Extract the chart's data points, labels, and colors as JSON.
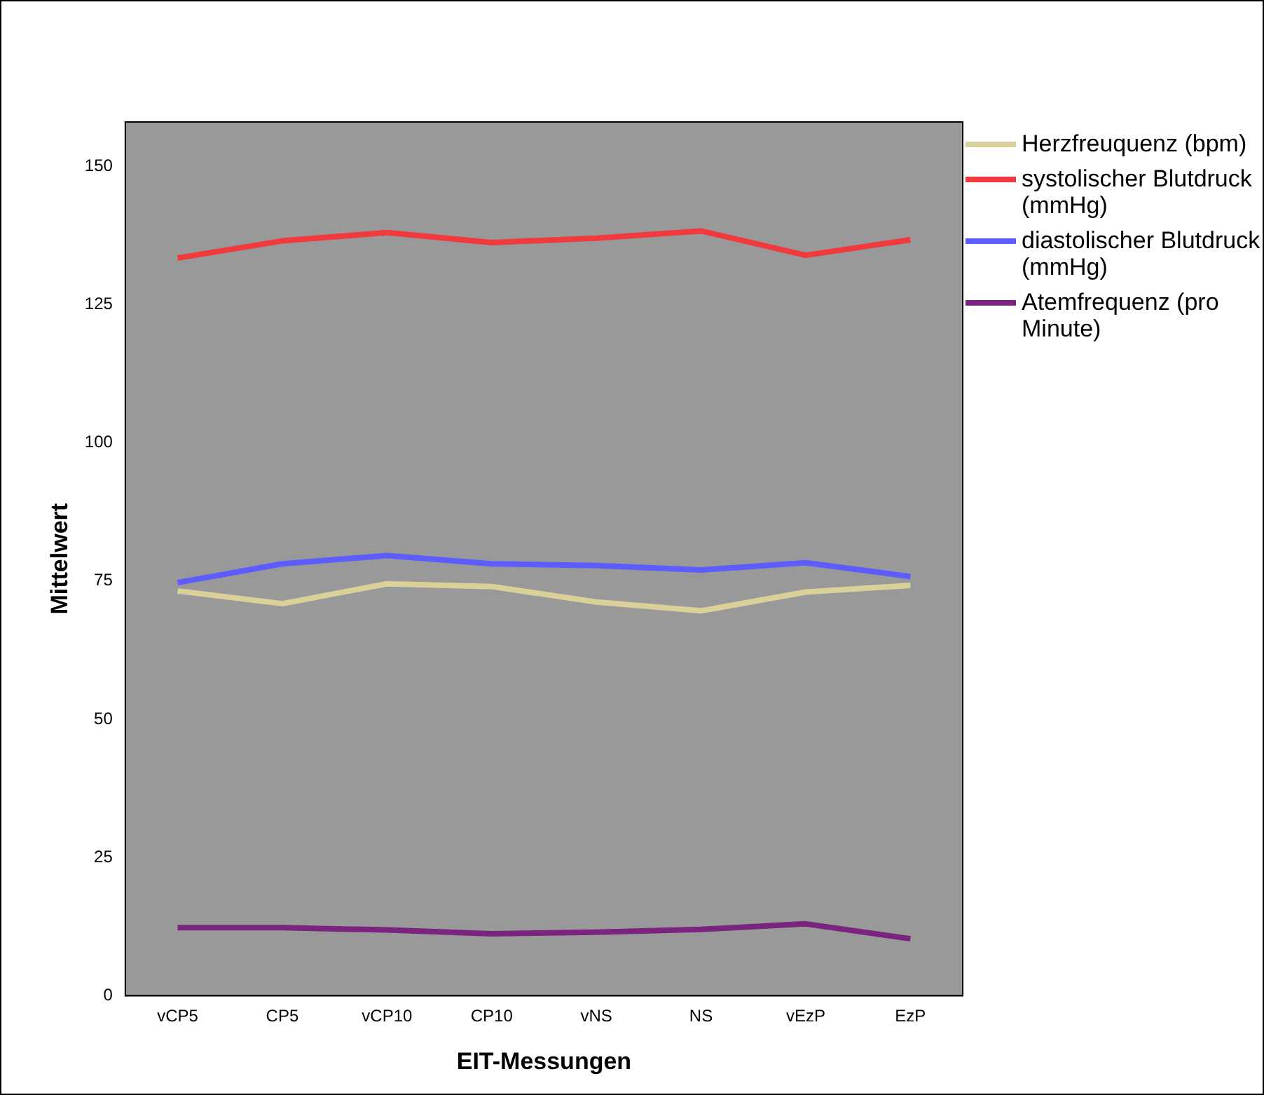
{
  "chart_data": {
    "type": "line",
    "xlabel": "EIT-Messungen",
    "ylabel": "Mittelwert",
    "categories": [
      "vCP5",
      "CP5",
      "vCP10",
      "CP10",
      "vNS",
      "NS",
      "vEzP",
      "EzP"
    ],
    "series": [
      {
        "name": "Herzfreuquenz (bpm)",
        "color": "#d9d09a",
        "values": [
          73.2,
          70.9,
          74.5,
          74.0,
          71.2,
          69.6,
          73.0,
          74.2
        ]
      },
      {
        "name": "systolischer Blutdruck (mmHg)",
        "color": "#f03a3e",
        "values": [
          133.4,
          136.5,
          138.0,
          136.2,
          137.0,
          138.3,
          133.9,
          136.7
        ]
      },
      {
        "name": "diastolischer Blutdruck (mmHg)",
        "color": "#5c5cff",
        "values": [
          74.7,
          78.1,
          79.6,
          78.1,
          77.8,
          77.0,
          78.3,
          75.8
        ]
      },
      {
        "name": "Atemfrequenz (pro Minute)",
        "color": "#7a2480",
        "values": [
          12.3,
          12.3,
          11.9,
          11.2,
          11.5,
          12.0,
          13.0,
          10.3
        ]
      }
    ],
    "ylim": [
      0,
      158
    ],
    "yticks": [
      0,
      25,
      50,
      75,
      100,
      125,
      150
    ],
    "grid": false,
    "legend": "right",
    "marker": "none",
    "line_style": "solid"
  }
}
